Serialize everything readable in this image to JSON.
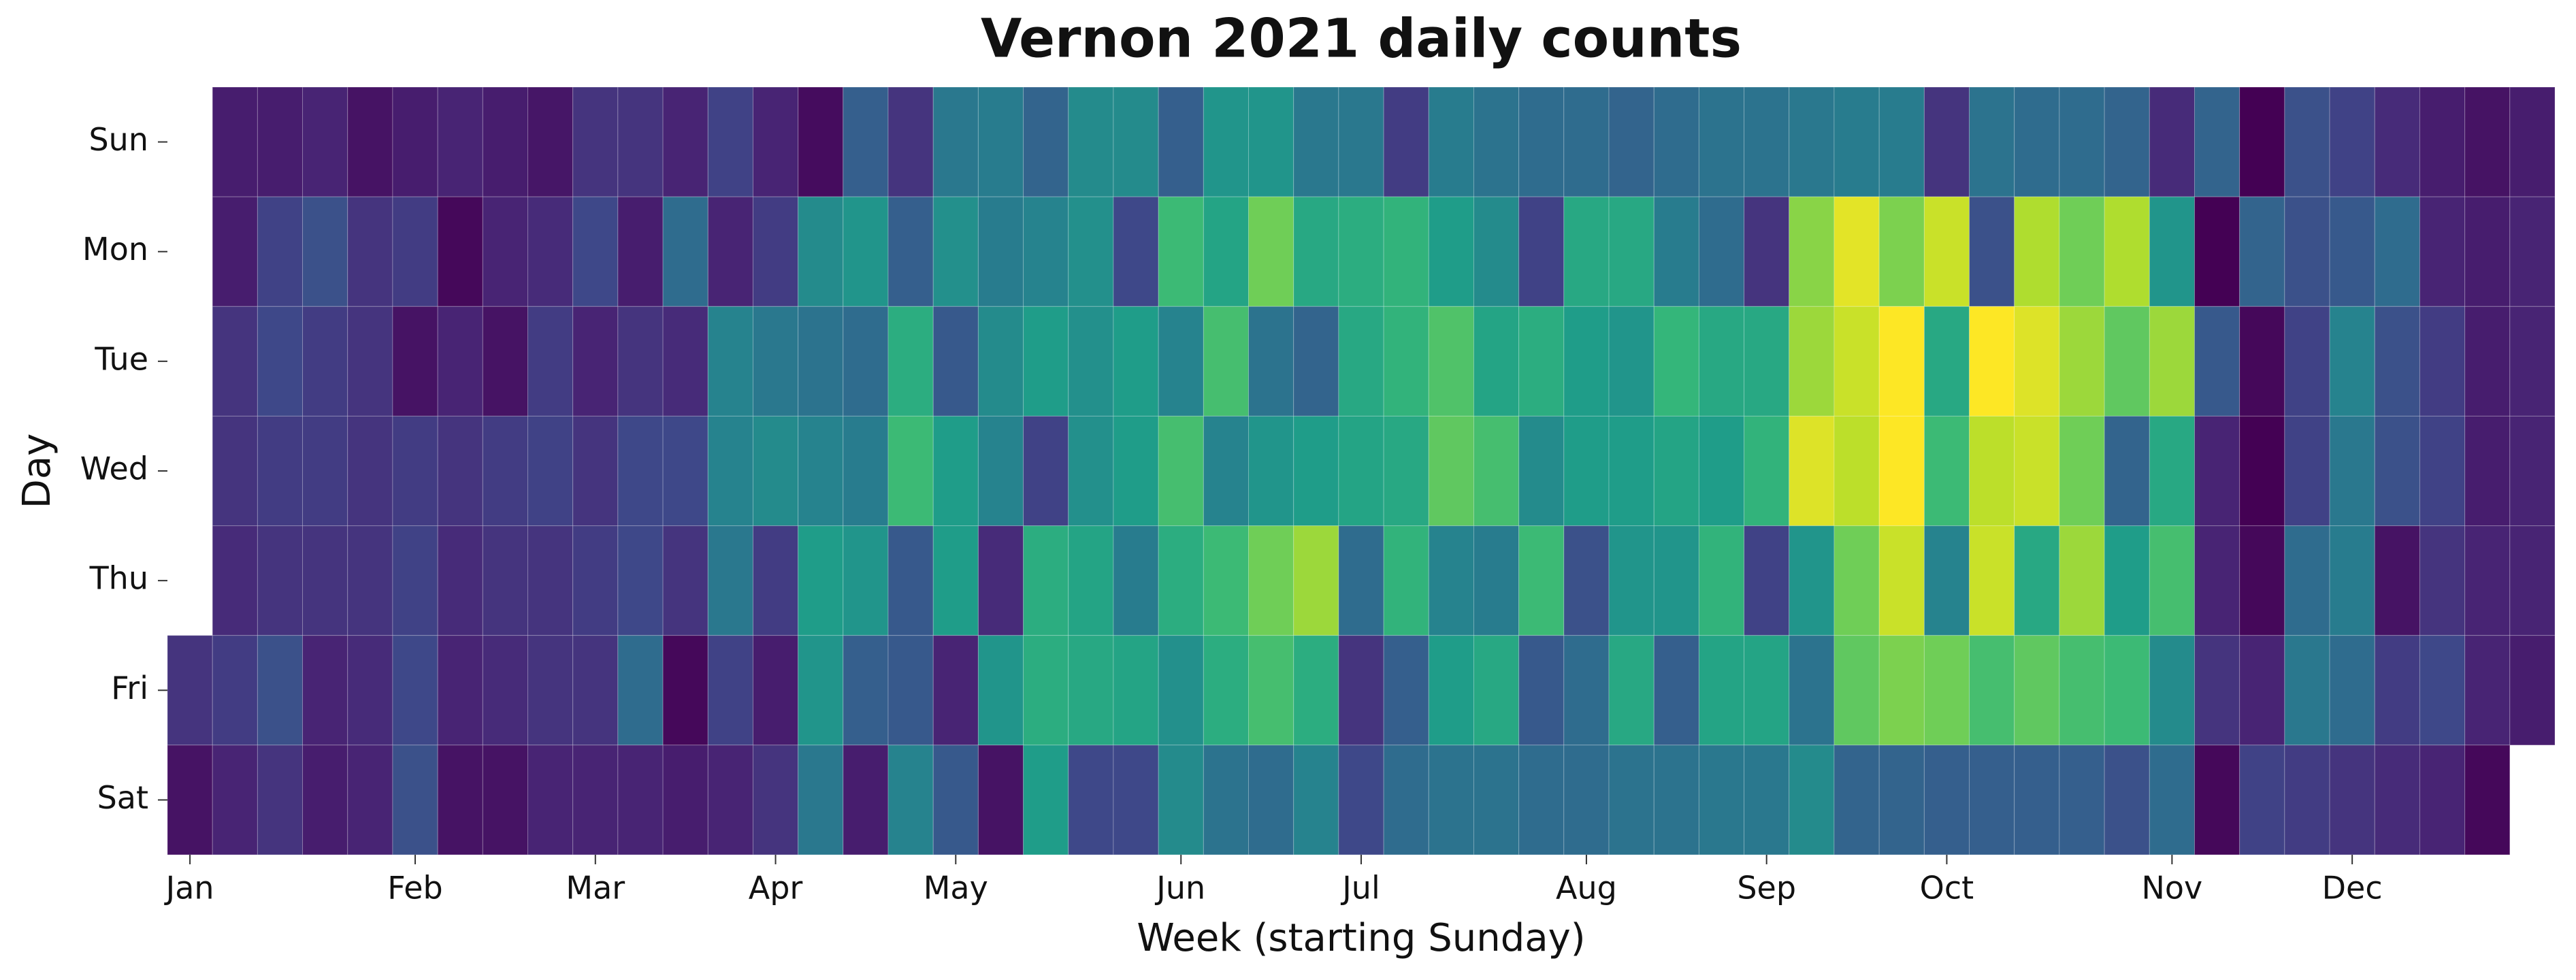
{
  "chart_data": {
    "type": "heatmap",
    "title": "Vernon 2021 daily counts",
    "x_label": "Week (starting Sunday)",
    "y_label": "Day",
    "colormap": "viridis",
    "xlim": [
      0,
      53
    ],
    "xticks": [
      {
        "value": 0,
        "label": "Jan"
      },
      {
        "value": 5,
        "label": "Feb"
      },
      {
        "value": 9,
        "label": "Mar"
      },
      {
        "value": 13,
        "label": "Apr"
      },
      {
        "value": 17,
        "label": "May"
      },
      {
        "value": 22,
        "label": "Jun"
      },
      {
        "value": 26,
        "label": "Jul"
      },
      {
        "value": 31,
        "label": "Aug"
      },
      {
        "value": 35,
        "label": "Sep"
      },
      {
        "value": 39,
        "label": "Oct"
      },
      {
        "value": 44,
        "label": "Nov"
      },
      {
        "value": 48,
        "label": "Dec"
      }
    ],
    "rows": [
      "Sun",
      "Mon",
      "Tue",
      "Wed",
      "Thu",
      "Fri",
      "Sat"
    ],
    "values": [
      [
        null,
        8,
        8,
        10,
        5,
        8,
        10,
        8,
        6,
        15,
        15,
        10,
        20,
        10,
        3,
        30,
        15,
        40,
        42,
        32,
        48,
        48,
        30,
        52,
        52,
        40,
        40,
        18,
        42,
        38,
        35,
        35,
        32,
        35,
        38,
        38,
        40,
        42,
        42,
        15,
        38,
        35,
        35,
        32,
        12,
        32,
        0,
        25,
        20,
        12,
        8,
        5,
        8
      ],
      [
        null,
        8,
        20,
        25,
        15,
        18,
        2,
        10,
        12,
        22,
        8,
        35,
        10,
        18,
        48,
        52,
        30,
        50,
        42,
        45,
        50,
        22,
        68,
        58,
        78,
        60,
        62,
        65,
        55,
        48,
        20,
        60,
        60,
        42,
        35,
        15,
        82,
        96,
        80,
        92,
        25,
        88,
        78,
        88,
        52,
        0,
        32,
        25,
        28,
        35,
        10,
        8,
        10
      ],
      [
        null,
        15,
        22,
        18,
        15,
        5,
        10,
        5,
        18,
        10,
        15,
        12,
        45,
        40,
        38,
        35,
        62,
        28,
        48,
        55,
        50,
        55,
        45,
        70,
        38,
        32,
        60,
        65,
        72,
        58,
        62,
        55,
        52,
        66,
        60,
        60,
        85,
        92,
        100,
        60,
        100,
        95,
        85,
        75,
        85,
        28,
        2,
        20,
        45,
        25,
        18,
        8,
        10
      ],
      [
        null,
        15,
        18,
        18,
        15,
        18,
        15,
        18,
        20,
        15,
        22,
        22,
        45,
        48,
        45,
        42,
        68,
        55,
        45,
        20,
        50,
        55,
        70,
        45,
        52,
        55,
        58,
        60,
        75,
        70,
        48,
        55,
        55,
        58,
        55,
        65,
        95,
        90,
        100,
        68,
        90,
        92,
        78,
        32,
        60,
        10,
        0,
        20,
        40,
        25,
        20,
        8,
        10
      ],
      [
        null,
        12,
        15,
        15,
        15,
        20,
        12,
        15,
        15,
        18,
        22,
        15,
        40,
        18,
        55,
        52,
        28,
        55,
        12,
        62,
        58,
        42,
        62,
        68,
        78,
        85,
        35,
        65,
        45,
        42,
        68,
        25,
        52,
        52,
        65,
        20,
        52,
        78,
        92,
        45,
        92,
        60,
        85,
        55,
        70,
        10,
        2,
        35,
        42,
        5,
        15,
        10,
        10
      ],
      [
        15,
        18,
        25,
        10,
        12,
        22,
        10,
        12,
        15,
        15,
        35,
        2,
        20,
        8,
        52,
        30,
        28,
        10,
        52,
        62,
        60,
        58,
        50,
        62,
        70,
        62,
        15,
        30,
        55,
        60,
        28,
        35,
        60,
        30,
        58,
        58,
        38,
        75,
        80,
        78,
        70,
        75,
        70,
        68,
        48,
        15,
        10,
        40,
        35,
        18,
        22,
        10,
        8
      ],
      [
        5,
        10,
        15,
        8,
        10,
        25,
        5,
        5,
        10,
        10,
        10,
        8,
        10,
        15,
        40,
        8,
        45,
        28,
        5,
        55,
        22,
        22,
        48,
        38,
        35,
        45,
        22,
        35,
        38,
        38,
        35,
        35,
        38,
        38,
        40,
        40,
        48,
        32,
        32,
        30,
        30,
        30,
        30,
        25,
        35,
        2,
        20,
        18,
        15,
        12,
        10,
        2,
        null
      ]
    ]
  }
}
